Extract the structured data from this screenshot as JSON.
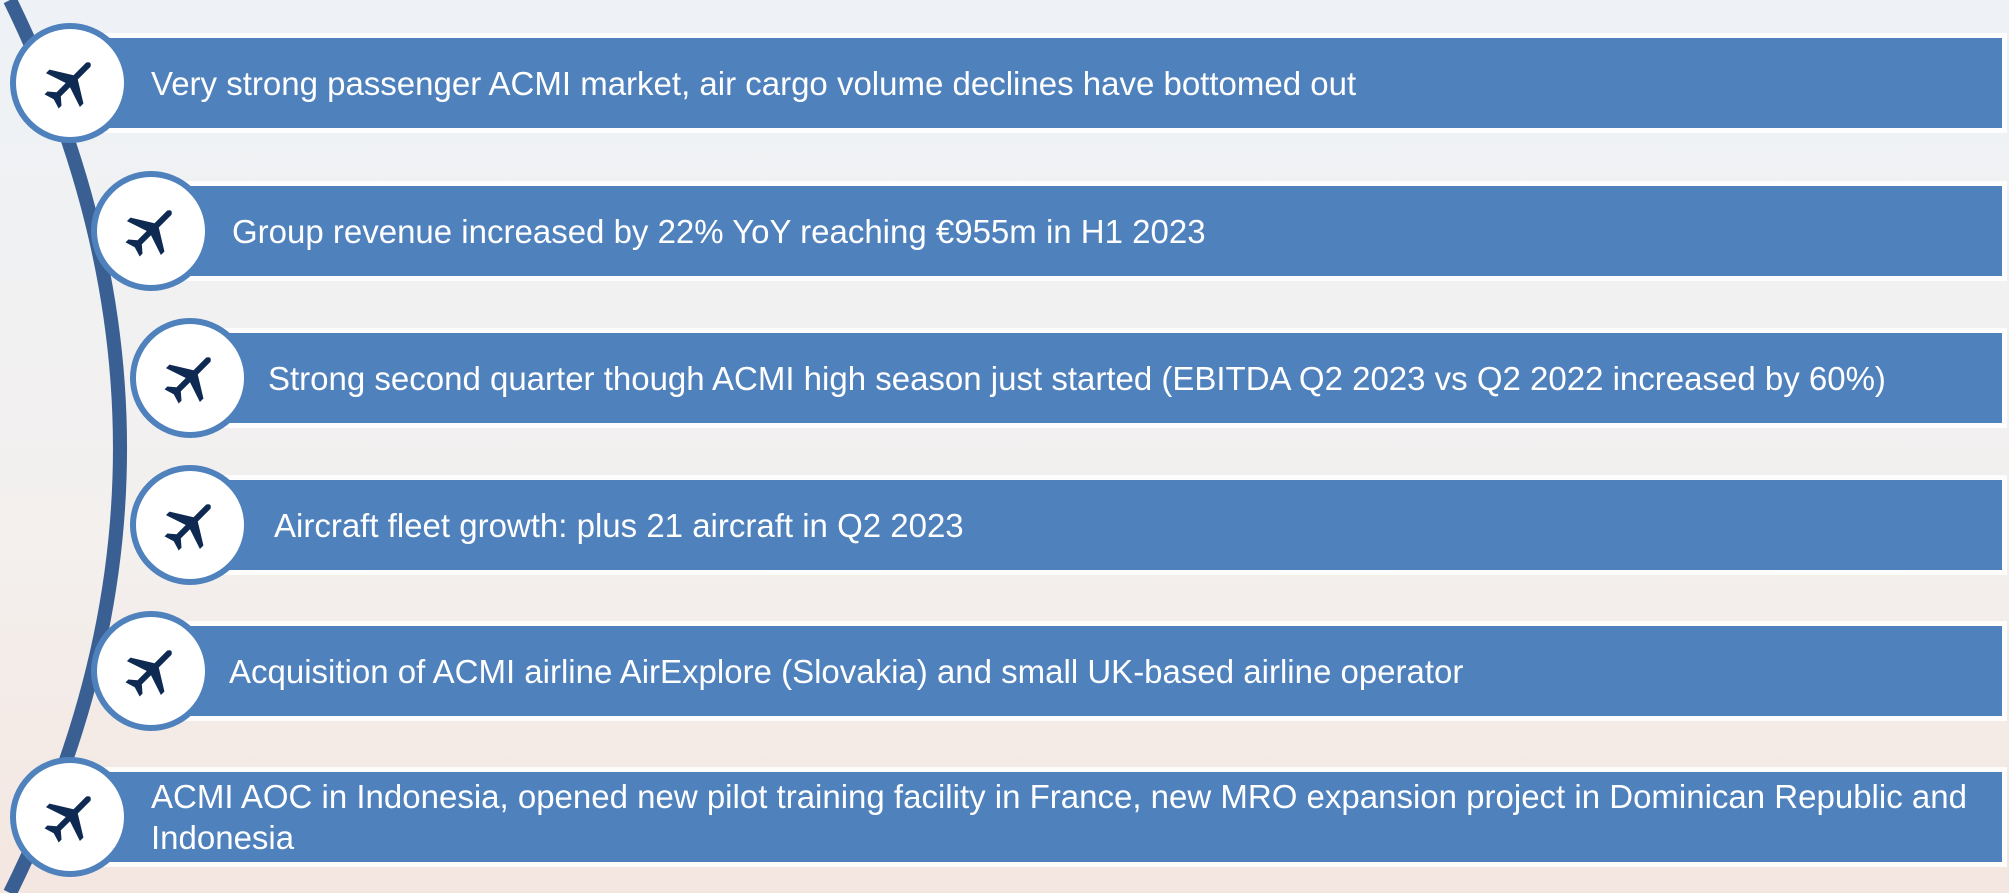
{
  "items": [
    {
      "text": "Very strong passenger ACMI market, air cargo volume declines have bottomed out"
    },
    {
      "text": "Group revenue increased by 22% YoY reaching €955m in H1 2023"
    },
    {
      "text": "Strong second quarter though ACMI high season just started (EBITDA Q2 2023 vs Q2 2022 increased by 60%)"
    },
    {
      "text": "Aircraft fleet growth: plus 21 aircraft in Q2 2023"
    },
    {
      "text": "Acquisition of ACMI airline AirExplore (Slovakia) and small UK-based airline operator"
    },
    {
      "text": "ACMI AOC in Indonesia, opened new pilot training facility in France, new MRO expansion project in Dominican Republic and Indonesia"
    }
  ]
}
